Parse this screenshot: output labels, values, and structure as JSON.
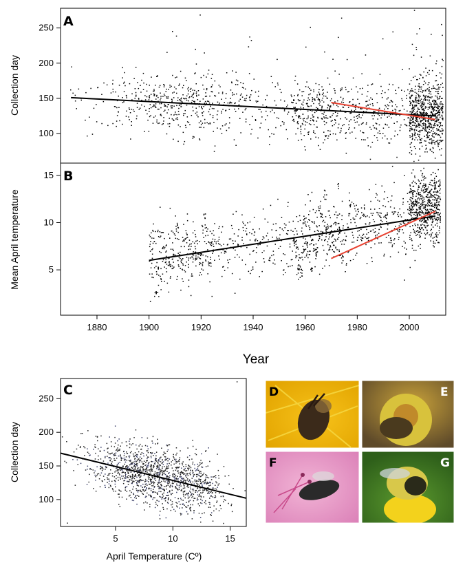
{
  "chart_data": [
    {
      "panel": "A",
      "type": "scatter",
      "xlabel": "Year",
      "ylabel": "Collection day",
      "xlim": [
        1866,
        2014
      ],
      "ylim": [
        58,
        278
      ],
      "yticks": [
        100,
        150,
        200,
        250
      ],
      "xticks": [
        1880,
        1900,
        1920,
        1940,
        1960,
        1980,
        2000
      ],
      "trend_lines": [
        {
          "color": "#000000",
          "x": [
            1870,
            2010
          ],
          "y": [
            151,
            125
          ]
        },
        {
          "color": "#e8402f",
          "x": [
            1970,
            2010
          ],
          "y": [
            144,
            120
          ]
        }
      ],
      "point_color": "#000000"
    },
    {
      "panel": "B",
      "type": "scatter",
      "xlabel": "Year",
      "ylabel": "Mean April temperature",
      "xlim": [
        1866,
        2014
      ],
      "ylim": [
        0.2,
        16.3
      ],
      "yticks": [
        5,
        10,
        15
      ],
      "xticks": [
        1880,
        1900,
        1920,
        1940,
        1960,
        1980,
        2000
      ],
      "trend_lines": [
        {
          "color": "#000000",
          "x": [
            1900,
            2010
          ],
          "y": [
            6.0,
            10.7
          ]
        },
        {
          "color": "#e8402f",
          "x": [
            1970,
            2010
          ],
          "y": [
            6.2,
            11.2
          ]
        }
      ],
      "point_color": "#000000"
    },
    {
      "panel": "C",
      "type": "scatter",
      "xlabel": "April Temperature (Cº)",
      "ylabel": "Collection day",
      "xlim": [
        0.2,
        16.4
      ],
      "ylim": [
        60,
        280
      ],
      "xticks": [
        5,
        10,
        15
      ],
      "yticks": [
        100,
        150,
        200,
        250
      ],
      "trend_lines": [
        {
          "color": "#000000",
          "x": [
            0.2,
            16.4
          ],
          "y": [
            169,
            102
          ]
        }
      ],
      "point_colors": [
        "#222222",
        "#3a3f6a"
      ]
    }
  ],
  "photos": [
    {
      "label": "D",
      "icon": "bee-on-yellow-dandelion-photo"
    },
    {
      "label": "E",
      "icon": "bee-on-yellow-pollen-flower-photo"
    },
    {
      "label": "F",
      "icon": "bee-on-pink-azalea-photo"
    },
    {
      "label": "G",
      "icon": "bumblebee-on-dandelion-photo"
    }
  ],
  "colors": {
    "trend_black": "#000000",
    "trend_red": "#e8402f"
  }
}
